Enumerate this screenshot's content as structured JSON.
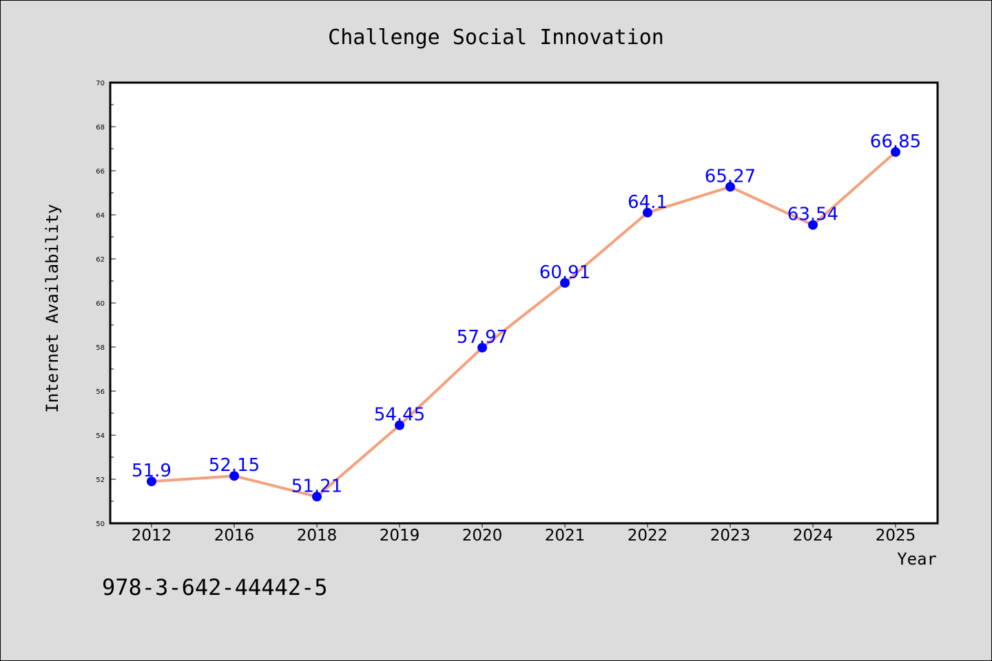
{
  "chart_data": {
    "type": "line",
    "title": "Challenge Social Innovation",
    "xlabel": "Year",
    "ylabel": "Internet Availability",
    "categories": [
      "2012",
      "2016",
      "2018",
      "2019",
      "2020",
      "2021",
      "2022",
      "2023",
      "2024",
      "2025"
    ],
    "series": [
      {
        "values": [
          51.9,
          52.15,
          51.21,
          54.45,
          57.97,
          60.91,
          64.1,
          65.27,
          63.54,
          66.85
        ],
        "data_labels": [
          "51.9",
          "52.15",
          "51.21",
          "54.45",
          "57.97",
          "60.91",
          "64.1",
          "65.27",
          "63.54",
          "66.85"
        ],
        "line_color": "#f4a07c",
        "marker_color": "#0000ff",
        "label_color": "#0000ff"
      }
    ],
    "ylim": [
      50,
      70
    ],
    "yticks": [
      50,
      52,
      54,
      56,
      58,
      60,
      62,
      64,
      66,
      68,
      70
    ],
    "grid": false,
    "legend": "none"
  },
  "footer": {
    "text": "978-3-642-44442-5"
  },
  "colors": {
    "background": "#dcdcdc",
    "plot_background": "#ffffff",
    "axes": "#000000"
  }
}
